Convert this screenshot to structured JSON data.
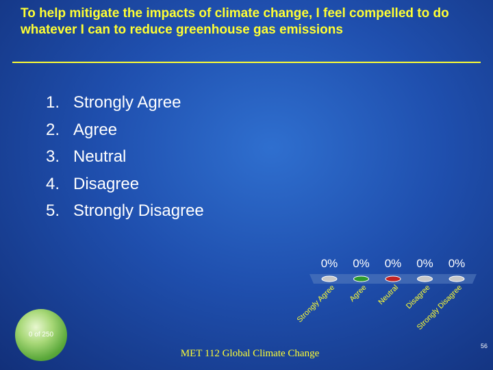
{
  "slide": {
    "title": "To help mitigate the impacts of climate change, I feel compelled to do whatever I can to reduce greenhouse gas emissions",
    "options": [
      {
        "num": "1.",
        "label": "Strongly Agree"
      },
      {
        "num": "2.",
        "label": "Agree"
      },
      {
        "num": "3.",
        "label": "Neutral"
      },
      {
        "num": "4.",
        "label": "Disagree"
      },
      {
        "num": "5.",
        "label": "Strongly Disagree"
      }
    ],
    "response_counter": "0 of 250",
    "footer": "MET 112 Global Climate Change",
    "page_number": "56"
  },
  "colors": {
    "title": "#ffff33",
    "text": "#ffffff",
    "button_gray": "#c8c8c8",
    "button_green": "#2e9a2e",
    "button_red": "#c02424"
  },
  "chart_data": {
    "type": "bar",
    "title": "",
    "xlabel": "",
    "ylabel": "",
    "categories": [
      "Strongly Agree",
      "Agree",
      "Neutral",
      "Disagree",
      "Strongly Disagree"
    ],
    "values": [
      0,
      0,
      0,
      0,
      0
    ],
    "value_labels": [
      "0%",
      "0%",
      "0%",
      "0%",
      "0%"
    ],
    "button_colors": [
      "#c8c8c8",
      "#2e9a2e",
      "#c02424",
      "#c8c8c8",
      "#c8c8c8"
    ],
    "ylim": [
      0,
      100
    ]
  }
}
